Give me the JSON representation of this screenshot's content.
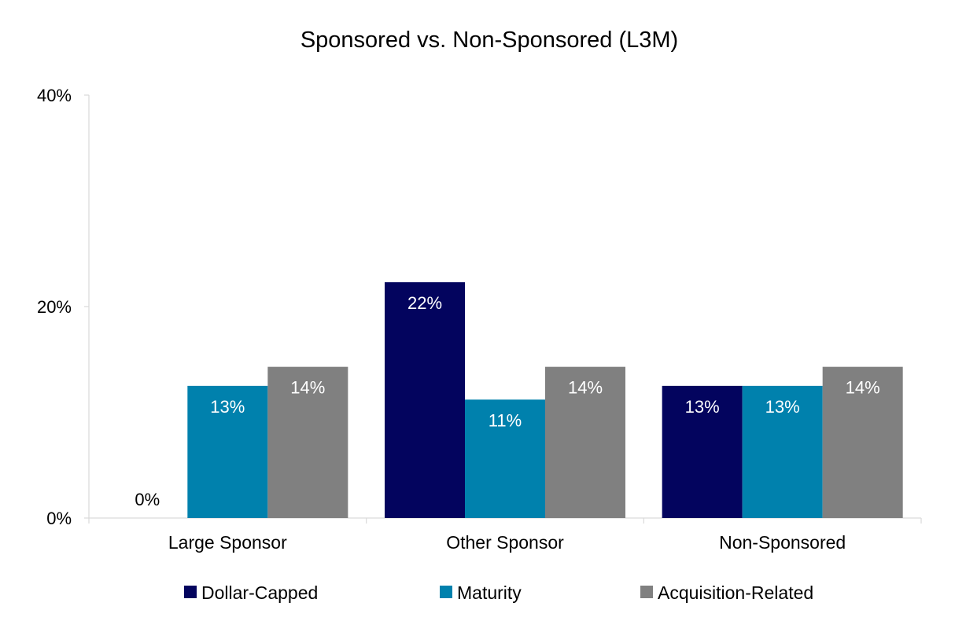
{
  "chart_data": {
    "type": "bar",
    "title": "Sponsored vs. Non-Sponsored (L3M)",
    "xlabel": "",
    "ylabel": "",
    "categories": [
      "Large Sponsor",
      "Other Sponsor",
      "Non-Sponsored"
    ],
    "series": [
      {
        "name": "Dollar-Capped",
        "color": "#03045e",
        "values": [
          0,
          22.3,
          12.5
        ],
        "labels": [
          "0%",
          "22%",
          "13%"
        ]
      },
      {
        "name": "Maturity",
        "color": "#0081ad",
        "values": [
          12.5,
          11.2,
          12.5
        ],
        "labels": [
          "13%",
          "11%",
          "13%"
        ]
      },
      {
        "name": "Acquisition-Related",
        "color": "#808080",
        "values": [
          14.3,
          14.3,
          14.3
        ],
        "labels": [
          "14%",
          "14%",
          "14%"
        ]
      }
    ],
    "ylim": [
      0,
      40
    ],
    "yticks": [
      0,
      20,
      40
    ],
    "ytick_labels": [
      "0%",
      "20%",
      "40%"
    ],
    "grid": false,
    "legend_position": "bottom"
  }
}
